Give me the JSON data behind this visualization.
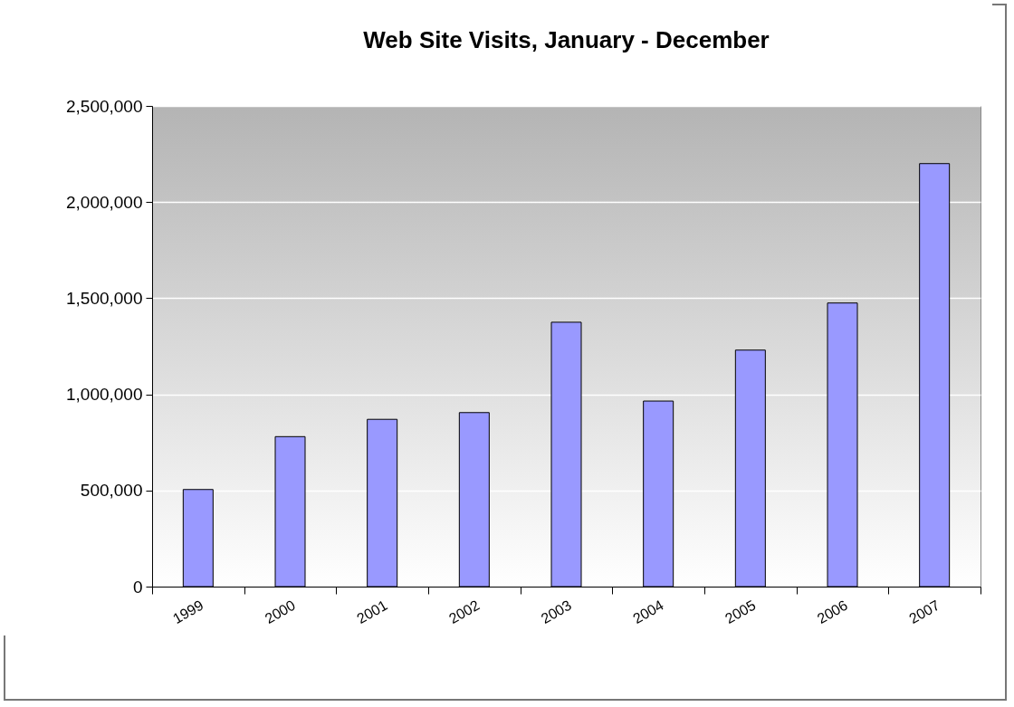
{
  "chart_data": {
    "type": "bar",
    "title": "Web Site Visits, January - December",
    "categories": [
      "1999",
      "2000",
      "2001",
      "2002",
      "2003",
      "2004",
      "2005",
      "2006",
      "2007"
    ],
    "values": [
      505000,
      780000,
      870000,
      905000,
      1375000,
      965000,
      1230000,
      1475000,
      2200000
    ],
    "color": "#9999ff",
    "ylim": [
      0,
      2500000
    ],
    "yticks": [
      {
        "value": 0,
        "label": "0"
      },
      {
        "value": 500000,
        "label": "500,000"
      },
      {
        "value": 1000000,
        "label": "1,000,000"
      },
      {
        "value": 1500000,
        "label": "1,500,000"
      },
      {
        "value": 2000000,
        "label": "2,000,000"
      },
      {
        "value": 2500000,
        "label": "2,500,000"
      }
    ],
    "grid": "y"
  }
}
